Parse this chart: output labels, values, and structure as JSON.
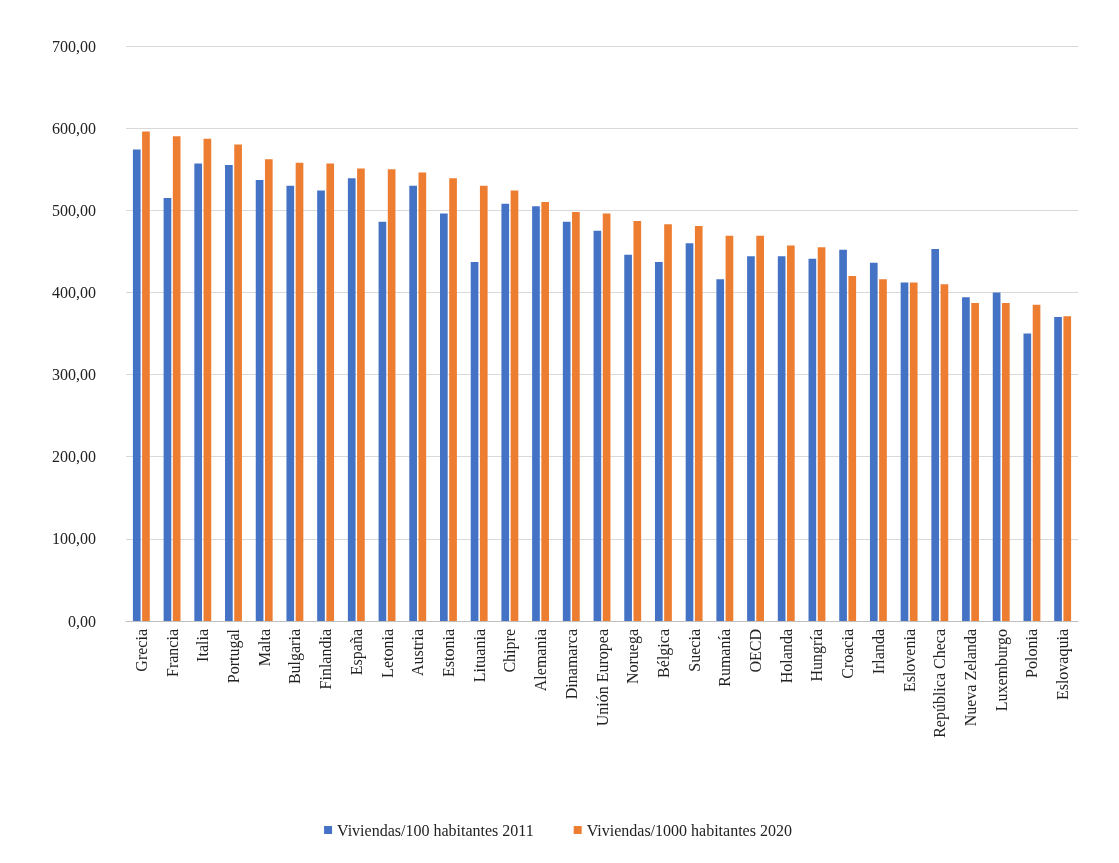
{
  "chart_data": {
    "type": "bar",
    "categories": [
      "Grecia",
      "Francia",
      "Italia",
      "Portugal",
      "Malta",
      "Bulgaria",
      "Finlandia",
      "España",
      "Letonia",
      "Austria",
      "Estonia",
      "Lituania",
      "Chipre",
      "Alemania",
      "Dinamarca",
      "Unión Europea",
      "Noruega",
      "Bélgica",
      "Suecia",
      "Rumanía",
      "OECD",
      "Holanda",
      "Hungría",
      "Croacia",
      "Irlanda",
      "Eslovenia",
      "República Checa",
      "Nueva Zelanda",
      "Luxemburgo",
      "Polonia",
      "Eslovaquia"
    ],
    "series": [
      {
        "name": "Viviendas/100 habitantes 2011",
        "color": "#4472c4",
        "values": [
          574,
          515,
          557,
          555,
          537,
          530,
          524,
          539,
          486,
          530,
          496,
          437,
          508,
          505,
          486,
          475,
          446,
          437,
          460,
          416,
          444,
          444,
          441,
          452,
          436,
          412,
          453,
          394,
          400,
          350,
          370
        ]
      },
      {
        "name": "Viviendas/1000 habitantes 2020",
        "color": "#ed7d31",
        "values": [
          596,
          590,
          587,
          580,
          562,
          558,
          557,
          551,
          550,
          546,
          539,
          530,
          524,
          510,
          498,
          496,
          487,
          483,
          481,
          469,
          469,
          457,
          455,
          420,
          416,
          412,
          410,
          387,
          387,
          385,
          371
        ]
      }
    ],
    "ylim": [
      0,
      700
    ],
    "yticks": [
      {
        "value": 0,
        "label": "0,00"
      },
      {
        "value": 100,
        "label": "100,00"
      },
      {
        "value": 200,
        "label": "200,00"
      },
      {
        "value": 300,
        "label": "300,00"
      },
      {
        "value": 400,
        "label": "400,00"
      },
      {
        "value": 500,
        "label": "500,00"
      },
      {
        "value": 600,
        "label": "600,00"
      },
      {
        "value": 700,
        "label": "700,00"
      }
    ],
    "grid": "y",
    "legend": "bottom"
  }
}
